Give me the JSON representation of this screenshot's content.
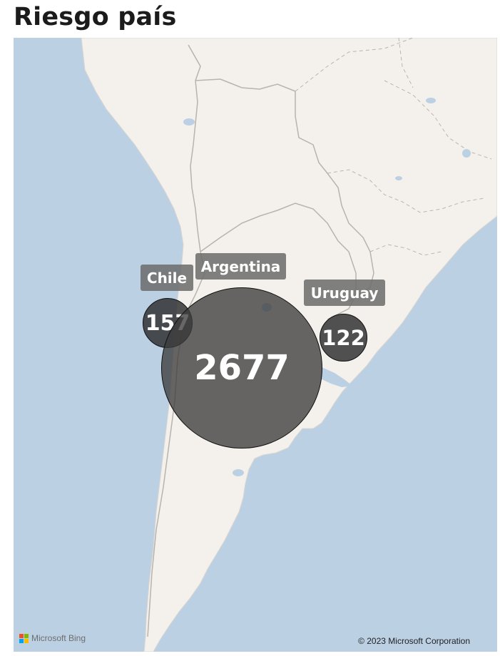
{
  "title": "Riesgo país",
  "map": {
    "markers": [
      {
        "country": "Chile",
        "value": "157"
      },
      {
        "country": "Argentina",
        "value": "2677"
      },
      {
        "country": "Uruguay",
        "value": "122"
      }
    ],
    "attribution_logo": "Microsoft Bing",
    "copyright": "© 2023 Microsoft Corporation"
  },
  "colors": {
    "ocean": "#bcd0e4",
    "land": "#f4f1ed",
    "bubble": "#4a4a4a",
    "label_bg": "#6e6e6e"
  }
}
